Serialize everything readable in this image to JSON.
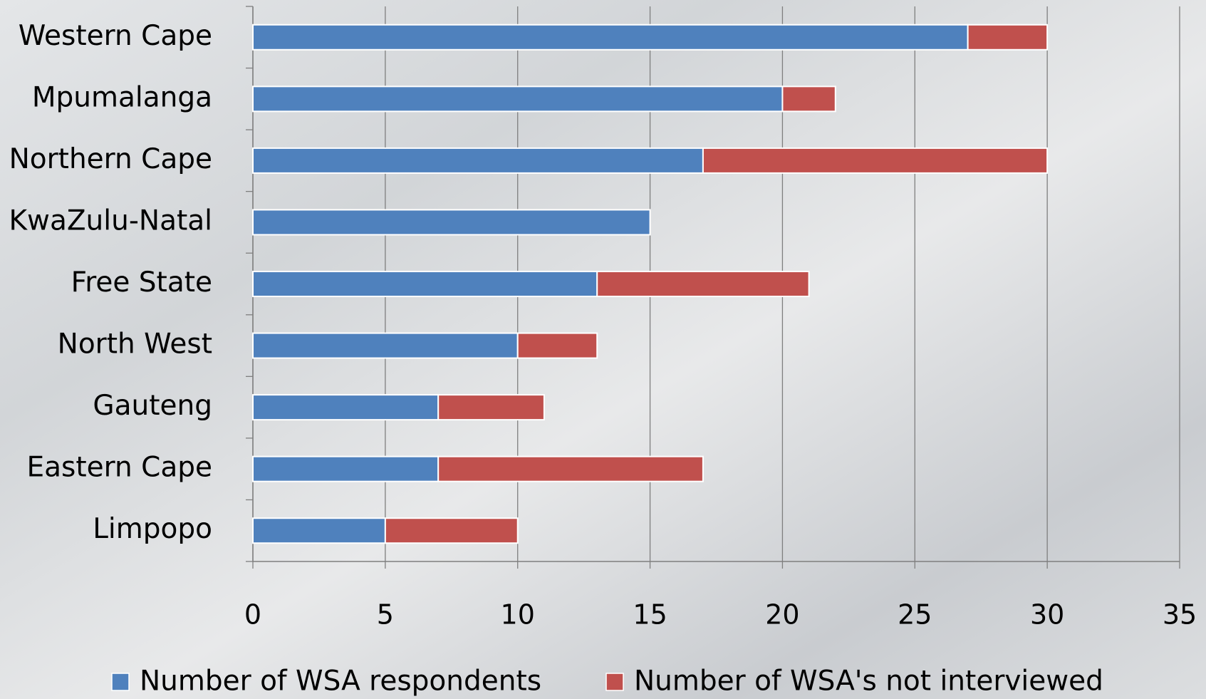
{
  "chart_data": {
    "type": "stacked-bar-horizontal",
    "categories": [
      "Western Cape",
      "Mpumalanga",
      "Northern Cape",
      "KwaZulu-Natal",
      "Free State",
      "North West",
      "Gauteng",
      "Eastern Cape",
      "Limpopo"
    ],
    "series": [
      {
        "name": "Number of WSA respondents",
        "color": "#4f81bd",
        "values": [
          27,
          20,
          17,
          15,
          13,
          10,
          7,
          7,
          5
        ]
      },
      {
        "name": "Number of WSA's not interviewed",
        "color": "#c0504d",
        "values": [
          3,
          2,
          13,
          0,
          8,
          3,
          4,
          10,
          5
        ]
      }
    ],
    "xlim": [
      0,
      35
    ],
    "xticks": [
      0,
      5,
      10,
      15,
      20,
      25,
      30,
      35
    ],
    "grid": true,
    "legend": "bottom"
  }
}
